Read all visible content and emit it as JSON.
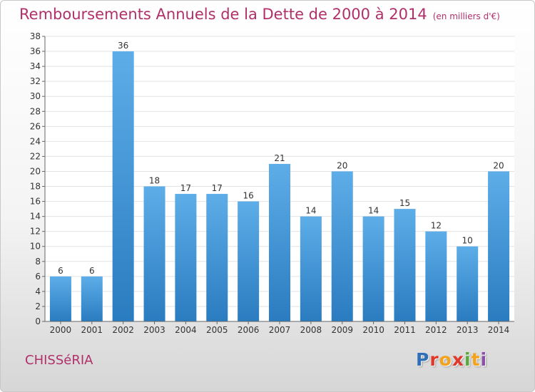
{
  "chart_data": {
    "type": "bar",
    "title": "Remboursements Annuels de la Dette de 2000 à 2014",
    "subtitle": "(en milliers d'€)",
    "categories": [
      "2000",
      "2001",
      "2002",
      "2003",
      "2004",
      "2005",
      "2006",
      "2007",
      "2008",
      "2009",
      "2010",
      "2011",
      "2012",
      "2013",
      "2014"
    ],
    "values": [
      6,
      6,
      36,
      18,
      17,
      17,
      16,
      21,
      14,
      20,
      14,
      15,
      12,
      10,
      20
    ],
    "yticks": [
      0,
      2,
      4,
      6,
      8,
      10,
      12,
      14,
      16,
      18,
      20,
      22,
      24,
      26,
      28,
      30,
      32,
      34,
      36,
      38
    ],
    "ylim": [
      0,
      38
    ],
    "grid": true,
    "bar_color_top": "#5dade8",
    "bar_color_bottom": "#2a7cc0"
  },
  "footer": {
    "city": "CHISSéRIA",
    "logo": "Proxiti"
  },
  "colors": {
    "title": "#b0306a",
    "axis_text": "#333333",
    "grid": "#e2e2e2"
  }
}
